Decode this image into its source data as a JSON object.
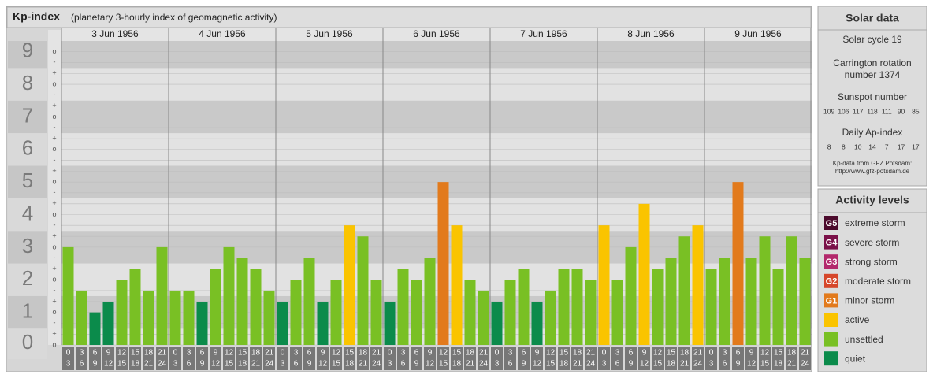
{
  "chart_data": {
    "type": "bar",
    "title": "Kp-index",
    "subtitle": "(planetary 3-hourly index of geomagnetic activity)",
    "days": [
      "3 Jun 1956",
      "4 Jun 1956",
      "5 Jun 1956",
      "6 Jun 1956",
      "7 Jun 1956",
      "8 Jun 1956",
      "9 Jun 1956"
    ],
    "hour_starts": [
      "0",
      "3",
      "6",
      "9",
      "12",
      "15",
      "18",
      "21"
    ],
    "hour_ends": [
      "3",
      "6",
      "9",
      "12",
      "15",
      "18",
      "21",
      "24"
    ],
    "values": [
      3,
      1.67,
      1,
      1.33,
      2,
      2.33,
      1.67,
      3,
      1.67,
      1.67,
      1.33,
      2.33,
      3,
      2.67,
      2.33,
      1.67,
      1.33,
      2,
      2.67,
      1.33,
      2,
      3.67,
      3.33,
      2,
      1.33,
      2.33,
      2,
      2.67,
      5,
      3.67,
      2,
      1.67,
      1.33,
      2,
      2.33,
      1.33,
      1.67,
      2.33,
      2.33,
      2,
      3.67,
      2,
      3,
      4.33,
      2.33,
      2.67,
      3.33,
      3.67,
      2.33,
      2.67,
      5,
      2.67,
      3.33,
      2.33,
      3.33,
      2.67
    ],
    "colors": [
      "#79c024",
      "#79c024",
      "#0b8b4b",
      "#0b8b4b",
      "#79c024",
      "#79c024",
      "#79c024",
      "#79c024",
      "#79c024",
      "#79c024",
      "#0b8b4b",
      "#79c024",
      "#79c024",
      "#79c024",
      "#79c024",
      "#79c024",
      "#0b8b4b",
      "#79c024",
      "#79c024",
      "#0b8b4b",
      "#79c024",
      "#fac400",
      "#79c024",
      "#79c024",
      "#0b8b4b",
      "#79c024",
      "#79c024",
      "#79c024",
      "#e27a1c",
      "#fac400",
      "#79c024",
      "#79c024",
      "#0b8b4b",
      "#79c024",
      "#79c024",
      "#0b8b4b",
      "#79c024",
      "#79c024",
      "#79c024",
      "#79c024",
      "#fac400",
      "#79c024",
      "#79c024",
      "#fac400",
      "#79c024",
      "#79c024",
      "#79c024",
      "#fac400",
      "#79c024",
      "#79c024",
      "#e27a1c",
      "#79c024",
      "#79c024",
      "#79c024",
      "#79c024",
      "#79c024"
    ],
    "ylim": [
      0,
      9.33
    ],
    "yticks": [
      0,
      1,
      2,
      3,
      4,
      5,
      6,
      7,
      8,
      9
    ],
    "minor_ticks": [
      {
        "value": 0,
        "label": "o"
      },
      {
        "value": 0.33,
        "label": "+"
      },
      {
        "value": 0.67,
        "label": "-"
      },
      {
        "value": 1,
        "label": "o"
      },
      {
        "value": 1.33,
        "label": "+"
      },
      {
        "value": 1.67,
        "label": "-"
      },
      {
        "value": 2,
        "label": "o"
      },
      {
        "value": 2.33,
        "label": "+"
      },
      {
        "value": 2.67,
        "label": "-"
      },
      {
        "value": 3,
        "label": "o"
      },
      {
        "value": 3.33,
        "label": "+"
      },
      {
        "value": 3.67,
        "label": "-"
      },
      {
        "value": 4,
        "label": "o"
      },
      {
        "value": 4.33,
        "label": "+"
      },
      {
        "value": 4.67,
        "label": "-"
      },
      {
        "value": 5,
        "label": "o"
      },
      {
        "value": 5.33,
        "label": "+"
      },
      {
        "value": 5.67,
        "label": "-"
      },
      {
        "value": 6,
        "label": "o"
      },
      {
        "value": 6.33,
        "label": "+"
      },
      {
        "value": 6.67,
        "label": "-"
      },
      {
        "value": 7,
        "label": "o"
      },
      {
        "value": 7.33,
        "label": "+"
      },
      {
        "value": 7.67,
        "label": "-"
      },
      {
        "value": 8,
        "label": "o"
      },
      {
        "value": 8.33,
        "label": "+"
      },
      {
        "value": 8.67,
        "label": "-"
      },
      {
        "value": 9,
        "label": "o"
      }
    ],
    "grid": true
  },
  "solar_data": {
    "title": "Solar data",
    "cycle": "Solar cycle 19",
    "carrington": [
      "Carrington rotation",
      "number 1374"
    ],
    "sunspot_title": "Sunspot number",
    "sunspots": [
      109,
      106,
      117,
      118,
      111,
      90,
      85
    ],
    "ap_title": "Daily Ap-index",
    "ap": [
      8,
      8,
      10,
      14,
      7,
      17,
      17
    ],
    "source": [
      "Kp-data from GFZ Potsdam:",
      "http://www.gfz-potsdam.de"
    ]
  },
  "activity_levels": {
    "title": "Activity levels",
    "levels": [
      {
        "badge": "G5",
        "name": "extreme storm",
        "color": "#4c0a2c"
      },
      {
        "badge": "G4",
        "name": "severe storm",
        "color": "#7a1048"
      },
      {
        "badge": "G3",
        "name": "strong storm",
        "color": "#b3286c"
      },
      {
        "badge": "G2",
        "name": "moderate storm",
        "color": "#d6462a"
      },
      {
        "badge": "G1",
        "name": "minor storm",
        "color": "#e27a1c"
      },
      {
        "name": "active",
        "color": "#fac400"
      },
      {
        "name": "unsettled",
        "color": "#79c024"
      },
      {
        "name": "quiet",
        "color": "#0b8b4b"
      }
    ]
  }
}
